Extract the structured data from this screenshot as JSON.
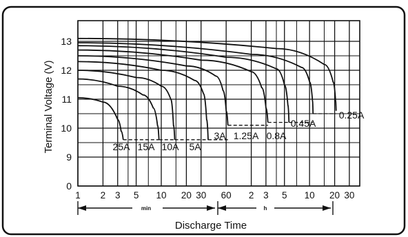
{
  "chart_data": {
    "type": "line",
    "title": "",
    "xlabel": "Discharge Time",
    "ylabel": "Terminal Voltage (V)",
    "x_scale": "log",
    "x_unit_ranges": [
      {
        "label": "min",
        "from": "1",
        "to": "60"
      },
      {
        "label": "h",
        "from": "1",
        "to": "20"
      }
    ],
    "x_ticks": [
      {
        "label": "1",
        "minutes": 1
      },
      {
        "label": "2",
        "minutes": 2
      },
      {
        "label": "3",
        "minutes": 3
      },
      {
        "label": "5",
        "minutes": 5
      },
      {
        "label": "10",
        "minutes": 10
      },
      {
        "label": "20",
        "minutes": 20
      },
      {
        "label": "30",
        "minutes": 30
      },
      {
        "label": "60",
        "minutes": 60
      },
      {
        "label": "2",
        "minutes": 120
      },
      {
        "label": "3",
        "minutes": 180
      },
      {
        "label": "5",
        "minutes": 300
      },
      {
        "label": "10",
        "minutes": 600
      },
      {
        "label": "20",
        "minutes": 1200
      },
      {
        "label": "30",
        "minutes": 1800
      }
    ],
    "y_ticks": [
      0,
      9,
      10,
      11,
      12,
      13
    ],
    "ylim_axis": [
      0,
      13.5
    ],
    "grid": true,
    "legend": "none",
    "series": [
      {
        "name": "25A",
        "x": [
          1,
          2,
          3,
          3.3,
          3.5
        ],
        "y": [
          11.05,
          10.9,
          10.3,
          9.9,
          9.6
        ]
      },
      {
        "name": "15A",
        "x": [
          1,
          3,
          6,
          8,
          9,
          9.4
        ],
        "y": [
          11.7,
          11.45,
          11.15,
          10.7,
          10.1,
          9.6
        ]
      },
      {
        "name": "10A",
        "x": [
          1,
          5,
          10,
          13,
          14,
          14.5
        ],
        "y": [
          12.0,
          11.75,
          11.45,
          11.0,
          10.1,
          9.6
        ]
      },
      {
        "name": "5A",
        "x": [
          1,
          10,
          25,
          32,
          35,
          36.5
        ],
        "y": [
          12.3,
          12.0,
          11.65,
          11.2,
          10.3,
          9.6
        ]
      },
      {
        "name": "3A",
        "x": [
          1,
          20,
          45,
          55,
          60,
          63
        ],
        "y": [
          12.5,
          12.15,
          11.8,
          11.3,
          10.6,
          10.1
        ]
      },
      {
        "name": "1.25A",
        "x": [
          1,
          30,
          120,
          160,
          180,
          190
        ],
        "y": [
          12.7,
          12.35,
          11.95,
          11.4,
          10.7,
          10.2
        ]
      },
      {
        "name": "0.8A",
        "x": [
          1,
          60,
          240,
          300,
          330,
          340
        ],
        "y": [
          12.85,
          12.45,
          12.05,
          11.5,
          10.8,
          10.2
        ]
      },
      {
        "name": "0.45A",
        "x": [
          1,
          120,
          480,
          600,
          650,
          660
        ],
        "y": [
          12.95,
          12.55,
          12.1,
          11.6,
          10.95,
          10.5
        ]
      },
      {
        "name": "0.25A",
        "x": [
          1,
          240,
          900,
          1150,
          1230,
          1250
        ],
        "y": [
          13.1,
          12.75,
          12.2,
          11.6,
          10.95,
          10.6
        ]
      }
    ],
    "annotations": [
      {
        "text": "25A"
      },
      {
        "text": "15A"
      },
      {
        "text": "10A"
      },
      {
        "text": "5A"
      },
      {
        "text": "3A"
      },
      {
        "text": "1.25A"
      },
      {
        "text": "0.8A"
      },
      {
        "text": "0.45A"
      },
      {
        "text": "0.25A"
      }
    ]
  }
}
